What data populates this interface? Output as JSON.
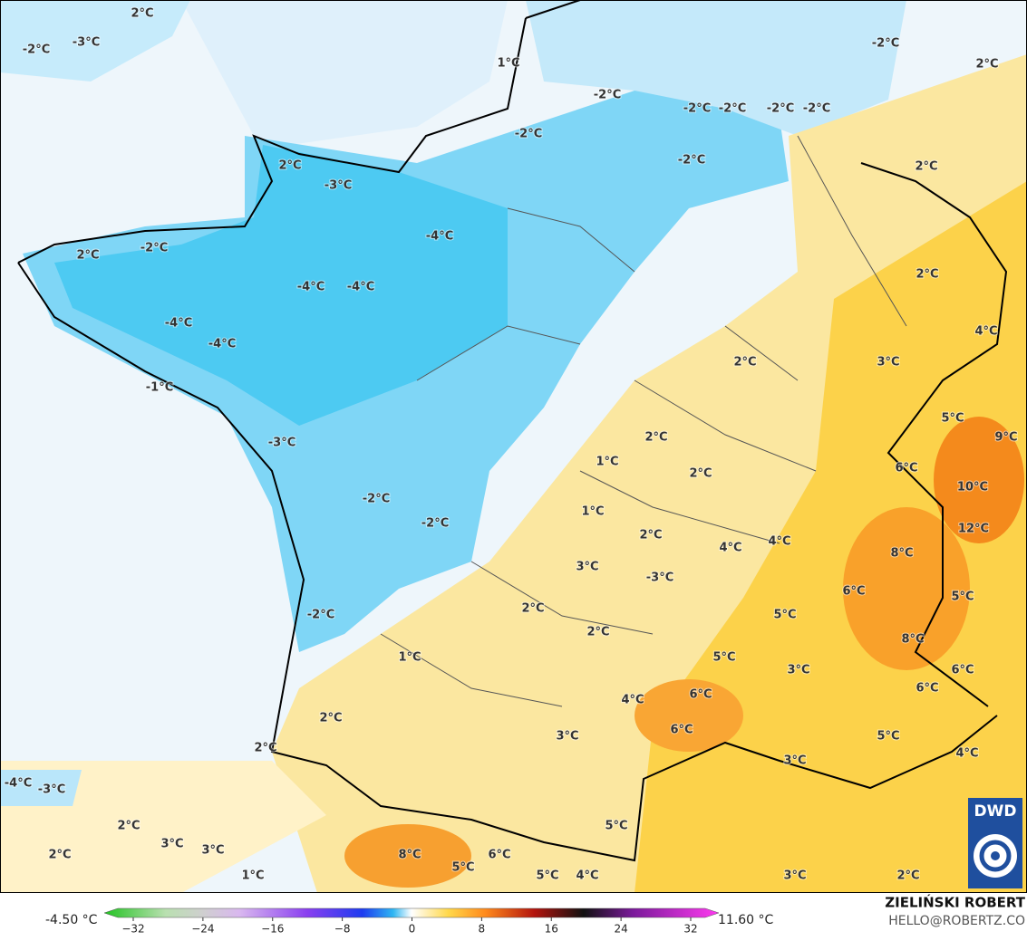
{
  "map": {
    "labels": [
      "2°C",
      "-3°C",
      "-2°C",
      "1°C",
      "-2°C",
      "2°C",
      "-2°C",
      "-2°C",
      "-2°C",
      "-2°C",
      "-2°C",
      "-2°C",
      "-2°C",
      "2°C",
      "-3°C",
      "2°C",
      "-4°C",
      "-2°C",
      "2°C",
      "2°C",
      "-4°C",
      "-4°C",
      "-4°C",
      "4°C",
      "-4°C",
      "2°C",
      "3°C",
      "-1°C",
      "5°C",
      "9°C",
      "2°C",
      "-3°C",
      "1°C",
      "2°C",
      "6°C",
      "10°C",
      "-2°C",
      "1°C",
      "-2°C",
      "12°C",
      "2°C",
      "4°C",
      "4°C",
      "8°C",
      "3°C",
      "-3°C",
      "6°C",
      "5°C",
      "2°C",
      "-2°C",
      "5°C",
      "2°C",
      "8°C",
      "1°C",
      "5°C",
      "3°C",
      "6°C",
      "4°C",
      "6°C",
      "6°C",
      "2°C",
      "6°C",
      "3°C",
      "5°C",
      "4°C",
      "2°C",
      "3°C",
      "-4°C",
      "-3°C",
      "2°C",
      "5°C",
      "3°C",
      "3°C",
      "8°C",
      "6°C",
      "2°C",
      "5°C",
      "5°C",
      "4°C",
      "1°C",
      "3°C",
      "2°C"
    ]
  },
  "colorbar": {
    "min_label": "-4.50 °C",
    "max_label": "11.60 °C",
    "ticks": [
      {
        "value": -32,
        "label": "−32"
      },
      {
        "value": -24,
        "label": "−24"
      },
      {
        "value": -16,
        "label": "−16"
      },
      {
        "value": -8,
        "label": "−8"
      },
      0,
      8,
      16,
      24,
      32
    ]
  },
  "credits": {
    "author": "ZIELIŃSKI ROBERT",
    "contact": "HELLO@ROBERTZ.CO",
    "logo": "DWD"
  }
}
